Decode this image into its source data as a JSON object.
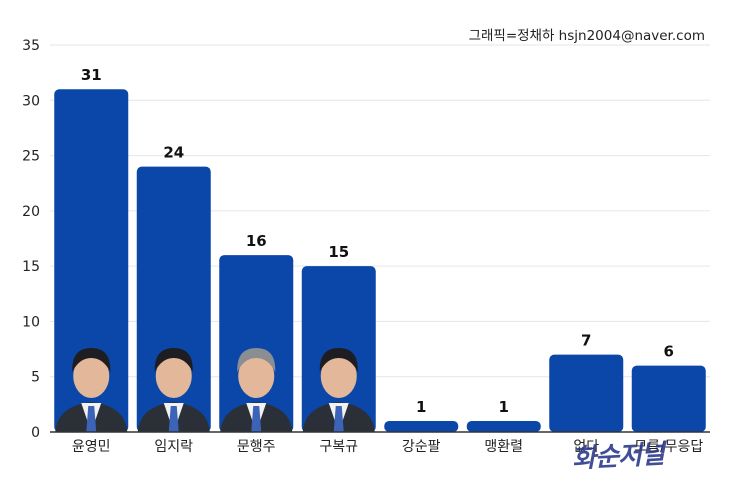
{
  "credit": "그래픽=정채하 hsjn2004@naver.com",
  "watermark": "화순저널",
  "colors": {
    "bar": "#0a47a9",
    "grid": "#e6e6e6",
    "axis": "#333333"
  },
  "chart_data": {
    "type": "bar",
    "categories": [
      "윤영민",
      "임지락",
      "문행주",
      "구복규",
      "강순팔",
      "맹환렬",
      "없다",
      "모름/무응답"
    ],
    "values": [
      31,
      24,
      16,
      15,
      1,
      1,
      7,
      6
    ],
    "data_labels": [
      "31",
      "24",
      "16",
      "15",
      "1",
      "1",
      "7",
      "6"
    ],
    "title": "",
    "xlabel": "",
    "ylabel": "",
    "ylim": [
      0,
      35
    ],
    "yticks": [
      0,
      5,
      10,
      15,
      20,
      25,
      30,
      35
    ],
    "grid": true,
    "legend": "none",
    "photos_on_bars": [
      "윤영민",
      "임지락",
      "문행주",
      "구복규"
    ]
  }
}
